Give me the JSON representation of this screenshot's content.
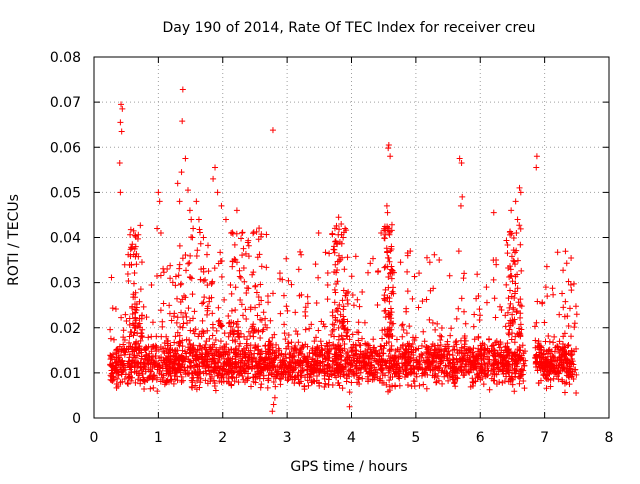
{
  "chart_data": {
    "type": "scatter",
    "title": "Day 190 of 2014, Rate Of TEC Index for receiver creu",
    "xlabel": "GPS time / hours",
    "ylabel": "ROTI / TECUs",
    "xlim": [
      0,
      8
    ],
    "ylim": [
      0,
      0.08
    ],
    "x_ticks": [
      0,
      1,
      2,
      3,
      4,
      5,
      6,
      7,
      8
    ],
    "y_ticks": [
      0,
      0.01,
      0.02,
      0.03,
      0.04,
      0.05,
      0.06,
      0.07,
      0.08
    ],
    "x_tick_labels": [
      "0",
      "1",
      "2",
      "3",
      "4",
      "5",
      "6",
      "7",
      "8"
    ],
    "y_tick_labels": [
      "0",
      "0.01",
      "0.02",
      "0.03",
      "0.04",
      "0.05",
      "0.06",
      "0.07",
      "0.08"
    ],
    "grid": true,
    "marker": "+",
    "colors": {
      "points": "#ff0000",
      "grid": "#a0a0a0",
      "axes": "#000000"
    },
    "series": [
      {
        "name": "ROTI",
        "points": [
          [
            0.42,
            0.0695
          ],
          [
            0.44,
            0.0685
          ],
          [
            0.41,
            0.0655
          ],
          [
            0.43,
            0.0635
          ],
          [
            0.4,
            0.0565
          ],
          [
            0.41,
            0.05
          ],
          [
            1.38,
            0.0728
          ],
          [
            1.37,
            0.0658
          ],
          [
            1.42,
            0.0575
          ],
          [
            1.36,
            0.0545
          ],
          [
            2.78,
            0.0638
          ],
          [
            4.58,
            0.0605
          ],
          [
            4.57,
            0.0598
          ],
          [
            4.6,
            0.058
          ],
          [
            4.55,
            0.047
          ],
          [
            4.56,
            0.0455
          ],
          [
            5.68,
            0.0575
          ],
          [
            5.71,
            0.0565
          ],
          [
            5.72,
            0.049
          ],
          [
            5.7,
            0.047
          ],
          [
            6.88,
            0.058
          ],
          [
            6.87,
            0.0555
          ],
          [
            1.0,
            0.05
          ],
          [
            1.02,
            0.048
          ],
          [
            0.98,
            0.042
          ],
          [
            1.04,
            0.041
          ],
          [
            1.3,
            0.052
          ],
          [
            1.33,
            0.048
          ],
          [
            1.46,
            0.0505
          ],
          [
            1.49,
            0.046
          ],
          [
            1.51,
            0.044
          ],
          [
            1.54,
            0.042
          ],
          [
            1.59,
            0.048
          ],
          [
            1.63,
            0.044
          ],
          [
            1.7,
            0.04
          ],
          [
            1.88,
            0.0555
          ],
          [
            1.85,
            0.053
          ],
          [
            1.92,
            0.05
          ],
          [
            1.98,
            0.047
          ],
          [
            2.05,
            0.044
          ],
          [
            2.13,
            0.041
          ],
          [
            2.22,
            0.046
          ],
          [
            2.3,
            0.041
          ],
          [
            3.49,
            0.041
          ],
          [
            3.8,
            0.0445
          ],
          [
            3.84,
            0.043
          ],
          [
            3.9,
            0.042
          ],
          [
            3.87,
            0.04
          ],
          [
            3.82,
            0.039
          ],
          [
            4.46,
            0.041
          ],
          [
            4.62,
            0.038
          ],
          [
            5.74,
            0.031
          ],
          [
            6.21,
            0.0455
          ],
          [
            6.48,
            0.046
          ],
          [
            6.55,
            0.048
          ],
          [
            6.61,
            0.051
          ],
          [
            6.63,
            0.05
          ],
          [
            6.58,
            0.044
          ],
          [
            7.02,
            0.029
          ],
          [
            7.04,
            0.027
          ],
          [
            7.5,
            0.023
          ],
          [
            7.47,
            0.021
          ]
        ]
      }
    ],
    "bulk_generator_note": "dense band of points 0.003–0.030 from x≈0.25 to 7.5 h, gap between 6.7 and 6.85 h"
  }
}
